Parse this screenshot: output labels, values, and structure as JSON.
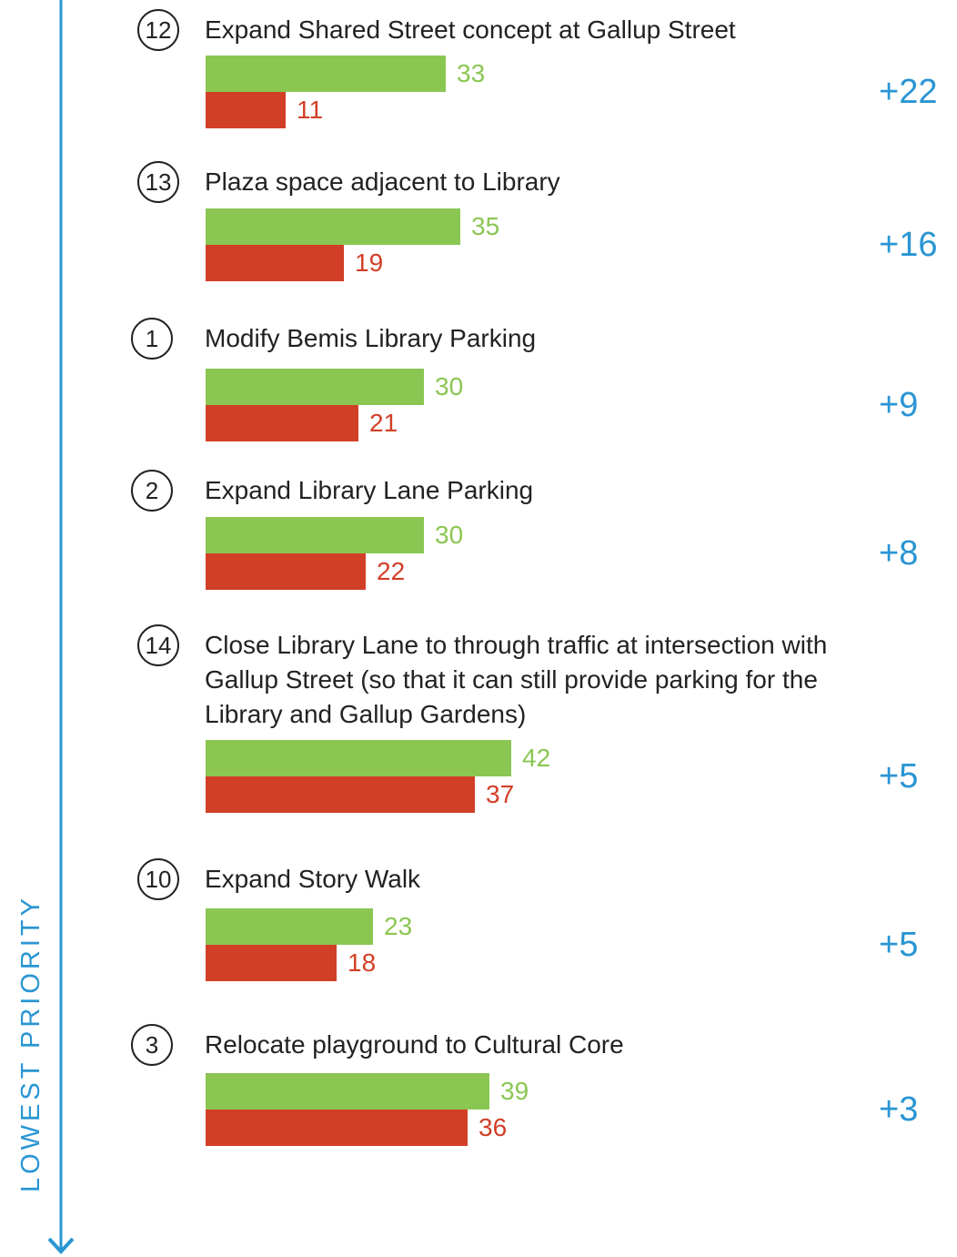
{
  "chart_data": {
    "type": "bar",
    "side_label": "LOWEST PRIORITY",
    "numbers": [
      12,
      13,
      1,
      2,
      14,
      10,
      3
    ],
    "categories": [
      "Expand Shared Street concept at Gallup Street",
      "Plaza space adjacent to Library",
      "Modify Bemis Library Parking",
      "Expand Library Lane Parking",
      "Close Library Lane to through traffic at intersection with Gallup Street (so that it can still provide parking for the Library and Gallup Gardens)",
      "Expand Story Walk",
      "Relocate playground to Cultural Core"
    ],
    "series": [
      {
        "color": "#8bc653",
        "values": [
          33,
          35,
          30,
          30,
          42,
          23,
          39
        ]
      },
      {
        "color": "#d23f27",
        "values": [
          11,
          19,
          21,
          22,
          37,
          18,
          36
        ]
      }
    ],
    "net": {
      "color": "#2a95d3",
      "values": [
        22,
        16,
        9,
        8,
        5,
        5,
        3
      ],
      "value_labels": [
        "+22",
        "+16",
        "+9",
        "+8",
        "+5",
        "+5",
        "+3"
      ]
    }
  }
}
